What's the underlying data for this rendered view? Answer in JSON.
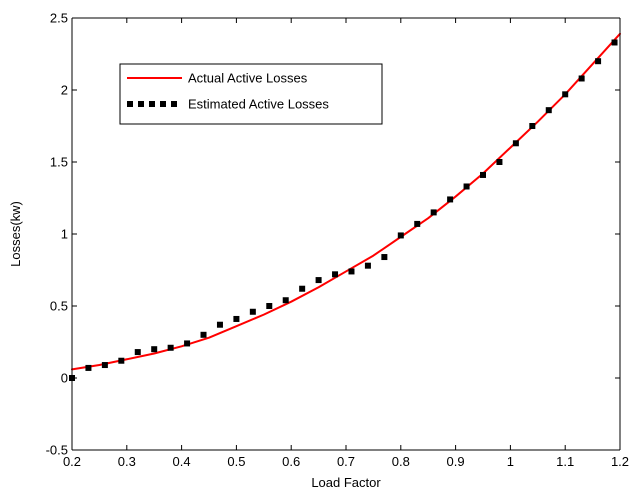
{
  "chart_data": {
    "type": "line",
    "title": "",
    "xlabel": "Load Factor",
    "ylabel": "Losses(kw)",
    "xlim": [
      0.2,
      1.2
    ],
    "ylim": [
      -0.5,
      2.5
    ],
    "xticks": [
      0.2,
      0.3,
      0.4,
      0.5,
      0.6,
      0.7,
      0.8,
      0.9,
      1,
      1.1,
      1.2
    ],
    "xtick_labels": [
      "0.2",
      "0.3",
      "0.4",
      "0.5",
      "0.6",
      "0.7",
      "0.8",
      "0.9",
      "1",
      "1.1",
      "1.2"
    ],
    "yticks": [
      -0.5,
      0,
      0.5,
      1,
      1.5,
      2,
      2.5
    ],
    "ytick_labels": [
      "-0.5",
      "0",
      "0.5",
      "1",
      "1.5",
      "2",
      "2.5"
    ],
    "grid": false,
    "legend_position": "top-left",
    "series": [
      {
        "name": "Actual Active Losses",
        "style": "solid",
        "color": "#ff0000",
        "x": [
          0.2,
          0.25,
          0.3,
          0.35,
          0.4,
          0.45,
          0.5,
          0.55,
          0.6,
          0.65,
          0.7,
          0.75,
          0.8,
          0.85,
          0.9,
          0.95,
          1.0,
          1.05,
          1.1,
          1.15,
          1.2
        ],
        "y": [
          0.06,
          0.09,
          0.13,
          0.17,
          0.22,
          0.28,
          0.36,
          0.44,
          0.53,
          0.63,
          0.74,
          0.85,
          0.98,
          1.11,
          1.26,
          1.42,
          1.6,
          1.78,
          1.97,
          2.18,
          2.39
        ]
      },
      {
        "name": "Estimated Active Losses",
        "style": "dotted",
        "color": "#000000",
        "x": [
          0.2,
          0.23,
          0.26,
          0.29,
          0.32,
          0.35,
          0.38,
          0.41,
          0.44,
          0.47,
          0.5,
          0.53,
          0.56,
          0.59,
          0.62,
          0.65,
          0.68,
          0.71,
          0.74,
          0.77,
          0.8,
          0.83,
          0.86,
          0.89,
          0.92,
          0.95,
          0.98,
          1.01,
          1.04,
          1.07,
          1.1,
          1.13,
          1.16,
          1.19
        ],
        "y": [
          0.0,
          0.07,
          0.09,
          0.12,
          0.18,
          0.2,
          0.21,
          0.24,
          0.3,
          0.37,
          0.41,
          0.46,
          0.5,
          0.54,
          0.62,
          0.68,
          0.72,
          0.74,
          0.78,
          0.84,
          0.99,
          1.07,
          1.15,
          1.24,
          1.33,
          1.41,
          1.5,
          1.63,
          1.75,
          1.86,
          1.97,
          2.08,
          2.2,
          2.33
        ]
      }
    ]
  }
}
